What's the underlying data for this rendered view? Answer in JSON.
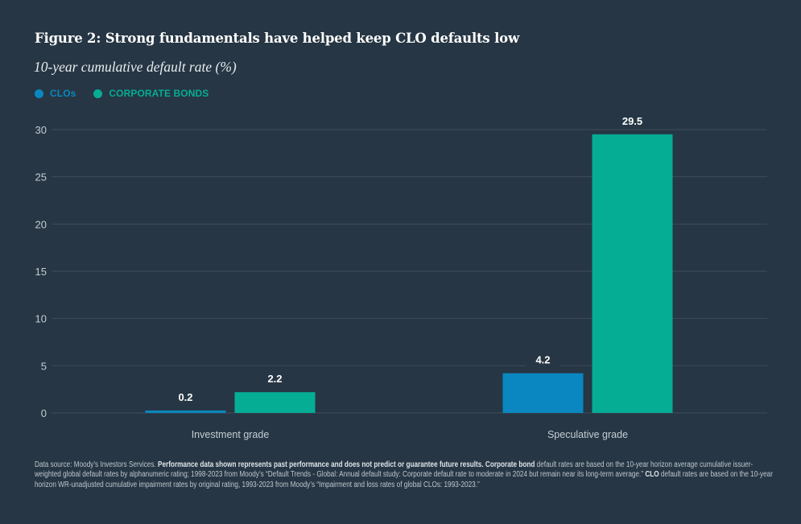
{
  "header": {
    "title": "Figure 2: Strong fundamentals have helped keep CLO defaults low",
    "subtitle": "10-year cumulative default rate (%)"
  },
  "colors": {
    "background": "#263644",
    "clos": "#0a87c0",
    "corporate_bonds": "#05ad94",
    "gridline": "#3e4e5c",
    "axis_text": "#c5ccd3",
    "value_label": "#ffffff"
  },
  "chart_data": {
    "type": "bar",
    "title": "Figure 2: Strong fundamentals have helped keep CLO defaults low",
    "subtitle": "10-year cumulative default rate (%)",
    "xlabel": "",
    "ylabel": "10-year cumulative default rate (%)",
    "categories": [
      "Investment grade",
      "Speculative grade"
    ],
    "series": [
      {
        "name": "CLOs",
        "color": "#0a87c0",
        "values": [
          0.2,
          4.2
        ],
        "labels": [
          "0.2",
          "4.2"
        ]
      },
      {
        "name": "CORPORATE BONDS",
        "color": "#05ad94",
        "values": [
          2.2,
          29.5
        ],
        "labels": [
          "2.2",
          "29.5"
        ]
      }
    ],
    "ylim": [
      0,
      30
    ],
    "yticks": [
      0,
      5,
      10,
      15,
      20,
      25,
      30
    ],
    "ytick_labels": [
      "0",
      "5",
      "10",
      "15",
      "20",
      "25",
      "30"
    ],
    "grid": true,
    "legend_position": "top-left",
    "data_labels": true
  },
  "footnote": {
    "segments": [
      {
        "text": "Data source: Moody’s Investors Services. ",
        "bold": false
      },
      {
        "text": "Performance data shown represents past performance and does not predict or guarantee future results.",
        "bold": true
      },
      {
        "text": " ",
        "bold": false
      },
      {
        "text": "Corporate bond",
        "bold": true
      },
      {
        "text": " default rates are based on the 10-year horizon average cumulative issuer-weighted global default rates by alphanumeric rating; 1998-2023 from Moody’s “Default Trends - Global: Annual default study: Corporate default rate to moderate in 2024 but remain near its long-term average.” ",
        "bold": false
      },
      {
        "text": "CLO",
        "bold": true
      },
      {
        "text": " default rates are based on the 10-year horizon WR-unadjusted cumulative impairment rates by original rating, 1993-2023 from Moody’s “Impairment and loss rates of global CLOs: 1993-2023.”",
        "bold": false
      }
    ]
  }
}
